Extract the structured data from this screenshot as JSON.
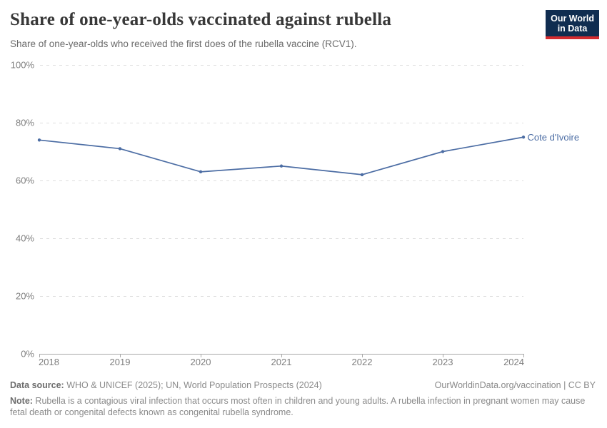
{
  "header": {
    "title": "Share of one-year-olds vaccinated against rubella",
    "subtitle": "Share of one-year-olds who received the first does of the rubella vaccine (RCV1).",
    "logo": {
      "line1": "Our World",
      "line2": "in Data",
      "bg": "#102d50",
      "accent": "#d42b2f"
    }
  },
  "chart_data": {
    "type": "line",
    "title": "Share of one-year-olds vaccinated against rubella",
    "x": [
      2018,
      2019,
      2020,
      2021,
      2022,
      2023,
      2024
    ],
    "series": [
      {
        "name": "Cote d'Ivoire",
        "values": [
          74,
          71,
          63,
          65,
          62,
          70,
          75
        ],
        "color": "#4c6da4"
      }
    ],
    "ylim": [
      0,
      100
    ],
    "yticks": [
      0,
      20,
      40,
      60,
      80,
      100
    ],
    "ytick_suffix": "%",
    "grid": "horizontal-dashed",
    "legend_position": "end-of-line-label",
    "colors": {
      "gridline": "#dedede",
      "axis": "#a8a8a8",
      "tick_label": "#7e7e7e"
    }
  },
  "footer": {
    "datasource_label": "Data source:",
    "datasource_text": " WHO & UNICEF (2025); UN, World Population Prospects (2024)",
    "credit": "OurWorldinData.org/vaccination | CC BY",
    "note_label": "Note:",
    "note_text": " Rubella is a contagious viral infection that occurs most often in children and young adults. A rubella infection in pregnant women may cause fetal death or congenital defects known as congenital rubella syndrome."
  }
}
